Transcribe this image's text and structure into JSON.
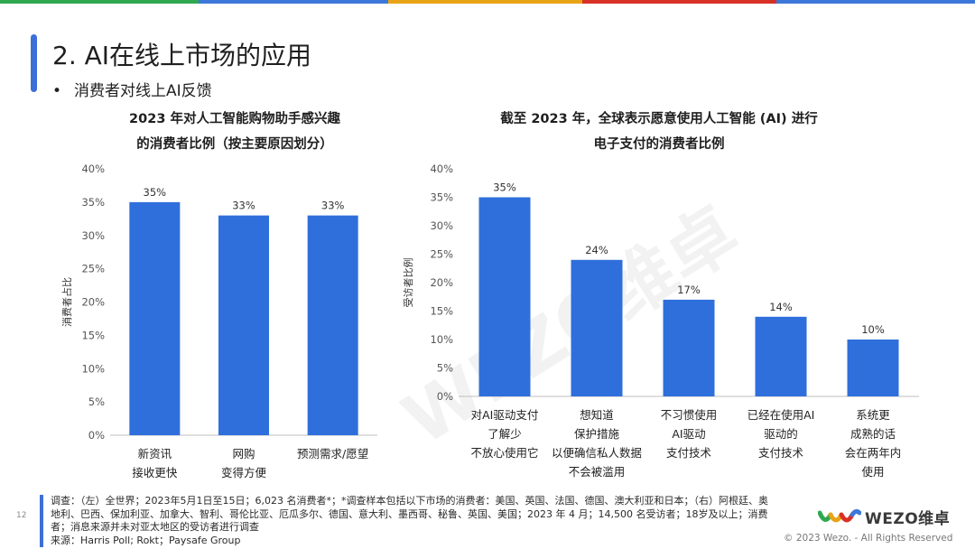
{
  "slide": {
    "title": "2. AI在线上市场的应用",
    "bullet": "消费者对线上AI反馈",
    "page_number": "12",
    "stripe_colors": [
      "#2fa84f",
      "#3c78d8",
      "#e8a317",
      "#d93025",
      "#3c78d8"
    ]
  },
  "chart_data": [
    {
      "type": "bar",
      "title_lines": [
        "2023 年对人工智能购物助手感兴趣",
        "的消费者比例（按主要原因划分）"
      ],
      "categories": [
        [
          "新资讯",
          "接收更快"
        ],
        [
          "网购",
          "变得方便"
        ],
        [
          "预测需求/愿望"
        ]
      ],
      "values": [
        35,
        33,
        33
      ],
      "data_labels": [
        "35%",
        "33%",
        "33%"
      ],
      "ylabel": "消费者占比",
      "ylim": [
        0,
        40
      ],
      "yticks": [
        "0%",
        "5%",
        "10%",
        "15%",
        "20%",
        "25%",
        "30%",
        "35%",
        "40%"
      ],
      "bar_color": "#2f6fdc"
    },
    {
      "type": "bar",
      "title_lines": [
        "截至 2023 年，全球表示愿意使用人工智能 (AI) 进行",
        "电子支付的消费者比例"
      ],
      "categories": [
        [
          "对AI驱动支付",
          "了解少",
          "不放心使用它"
        ],
        [
          "想知道",
          "保护措施",
          "以便确信私人数据",
          "不会被滥用"
        ],
        [
          "不习惯使用",
          "AI驱动",
          "支付技术"
        ],
        [
          "已经在使用AI",
          "驱动的",
          "支付技术"
        ],
        [
          "系统更",
          "成熟的话",
          "会在两年内",
          "使用"
        ]
      ],
      "values": [
        35,
        24,
        17,
        14,
        10
      ],
      "data_labels": [
        "35%",
        "24%",
        "17%",
        "14%",
        "10%"
      ],
      "ylabel": "受访者比例",
      "ylim": [
        0,
        40
      ],
      "yticks": [
        "0%",
        "5%",
        "10%",
        "15%",
        "20%",
        "25%",
        "30%",
        "35%",
        "40%"
      ],
      "bar_color": "#2f6fdc"
    }
  ],
  "footnote": {
    "lines": [
      "调查：（左）全世界；2023年5月1日至15日；6,023 名消费者*；*调查样本包括以下市场的消费者：美国、英国、法国、德国、澳大利亚和日本；（右）阿根廷、奥",
      "地利、巴西、保加利亚、加拿大、智利、哥伦比亚、厄瓜多尔、德国、意大利、墨西哥、秘鲁、英国、美国；2023 年 4 月；14,500 名受访者；18岁及以上；消费",
      "者；消息来源并未对亚太地区的受访者进行调查",
      "来源：Harris Poll; Rokt；Paysafe Group"
    ]
  },
  "brand": {
    "logo_text": "WEZO维卓",
    "copyright": "© 2023 Wezo. - All Rights Reserved",
    "watermark": "WEZO维卓"
  }
}
